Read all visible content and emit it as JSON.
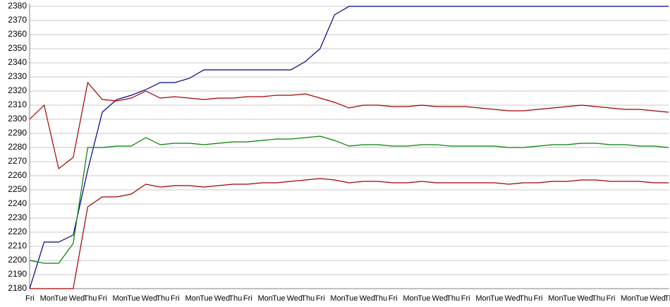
{
  "chart_data": {
    "type": "line",
    "categories": [
      "Fri",
      "Mon",
      "Tue",
      "Wed",
      "Thu",
      "Fri",
      "Mon",
      "Tue",
      "Wed",
      "Thu",
      "Fri",
      "Mon",
      "Tue",
      "Wed",
      "Thu",
      "Fri",
      "Mon",
      "Tue",
      "Wed",
      "Thu",
      "Fri",
      "Mon",
      "Tue",
      "Wed",
      "Thu",
      "Fri",
      "Mon",
      "Tue",
      "Wed",
      "Thu",
      "Fri",
      "Mon",
      "Tue",
      "Wed",
      "Thu",
      "Fri",
      "Mon",
      "Tue",
      "Wed",
      "Thu",
      "Fri",
      "Mon",
      "Tue",
      "Wed",
      "Thu"
    ],
    "series": [
      {
        "color": "#000080",
        "values": [
          2180,
          2213,
          2213,
          2218,
          2264,
          2305,
          2314,
          2317,
          2321,
          2326,
          2326,
          2329,
          2335,
          2335,
          2335,
          2335,
          2335,
          2335,
          2335,
          2341,
          2350,
          2374,
          2380,
          2380,
          2380,
          2380,
          2380,
          2380,
          2380,
          2380,
          2380,
          2380,
          2380,
          2380,
          2380,
          2380,
          2380,
          2380,
          2380,
          2380,
          2380,
          2380,
          2380,
          2380,
          2380
        ]
      },
      {
        "color": "#a00000",
        "values": [
          2300,
          2310,
          2265,
          2273,
          2326,
          2314,
          2313,
          2315,
          2320,
          2315,
          2316,
          2315,
          2314,
          2315,
          2315,
          2316,
          2316,
          2317,
          2317,
          2318,
          2315,
          2312,
          2308,
          2310,
          2310,
          2309,
          2309,
          2310,
          2309,
          2309,
          2309,
          2308,
          2307,
          2306,
          2306,
          2307,
          2308,
          2309,
          2310,
          2309,
          2308,
          2307,
          2307,
          2306,
          2305
        ]
      },
      {
        "color": "#008000",
        "values": [
          2200,
          2198,
          2198,
          2212,
          2280,
          2280,
          2281,
          2281,
          2287,
          2282,
          2283,
          2283,
          2282,
          2283,
          2284,
          2284,
          2285,
          2286,
          2286,
          2287,
          2288,
          2285,
          2281,
          2282,
          2282,
          2281,
          2281,
          2282,
          2282,
          2281,
          2281,
          2281,
          2281,
          2280,
          2280,
          2281,
          2282,
          2282,
          2283,
          2283,
          2282,
          2282,
          2281,
          2281,
          2280
        ]
      },
      {
        "color": "#a00000",
        "values": [
          2180,
          2180,
          2180,
          2180,
          2238,
          2245,
          2245,
          2247,
          2254,
          2252,
          2253,
          2253,
          2252,
          2253,
          2254,
          2254,
          2255,
          2255,
          2256,
          2257,
          2258,
          2257,
          2255,
          2256,
          2256,
          2255,
          2255,
          2256,
          2255,
          2255,
          2255,
          2255,
          2255,
          2254,
          2255,
          2255,
          2256,
          2256,
          2257,
          2257,
          2256,
          2256,
          2256,
          2255,
          2255
        ]
      }
    ],
    "ylim": [
      2180,
      2380
    ],
    "yticks": [
      2180,
      2190,
      2200,
      2210,
      2220,
      2230,
      2240,
      2250,
      2260,
      2270,
      2280,
      2290,
      2300,
      2310,
      2320,
      2330,
      2340,
      2350,
      2360,
      2370,
      2380
    ],
    "grid": true
  }
}
